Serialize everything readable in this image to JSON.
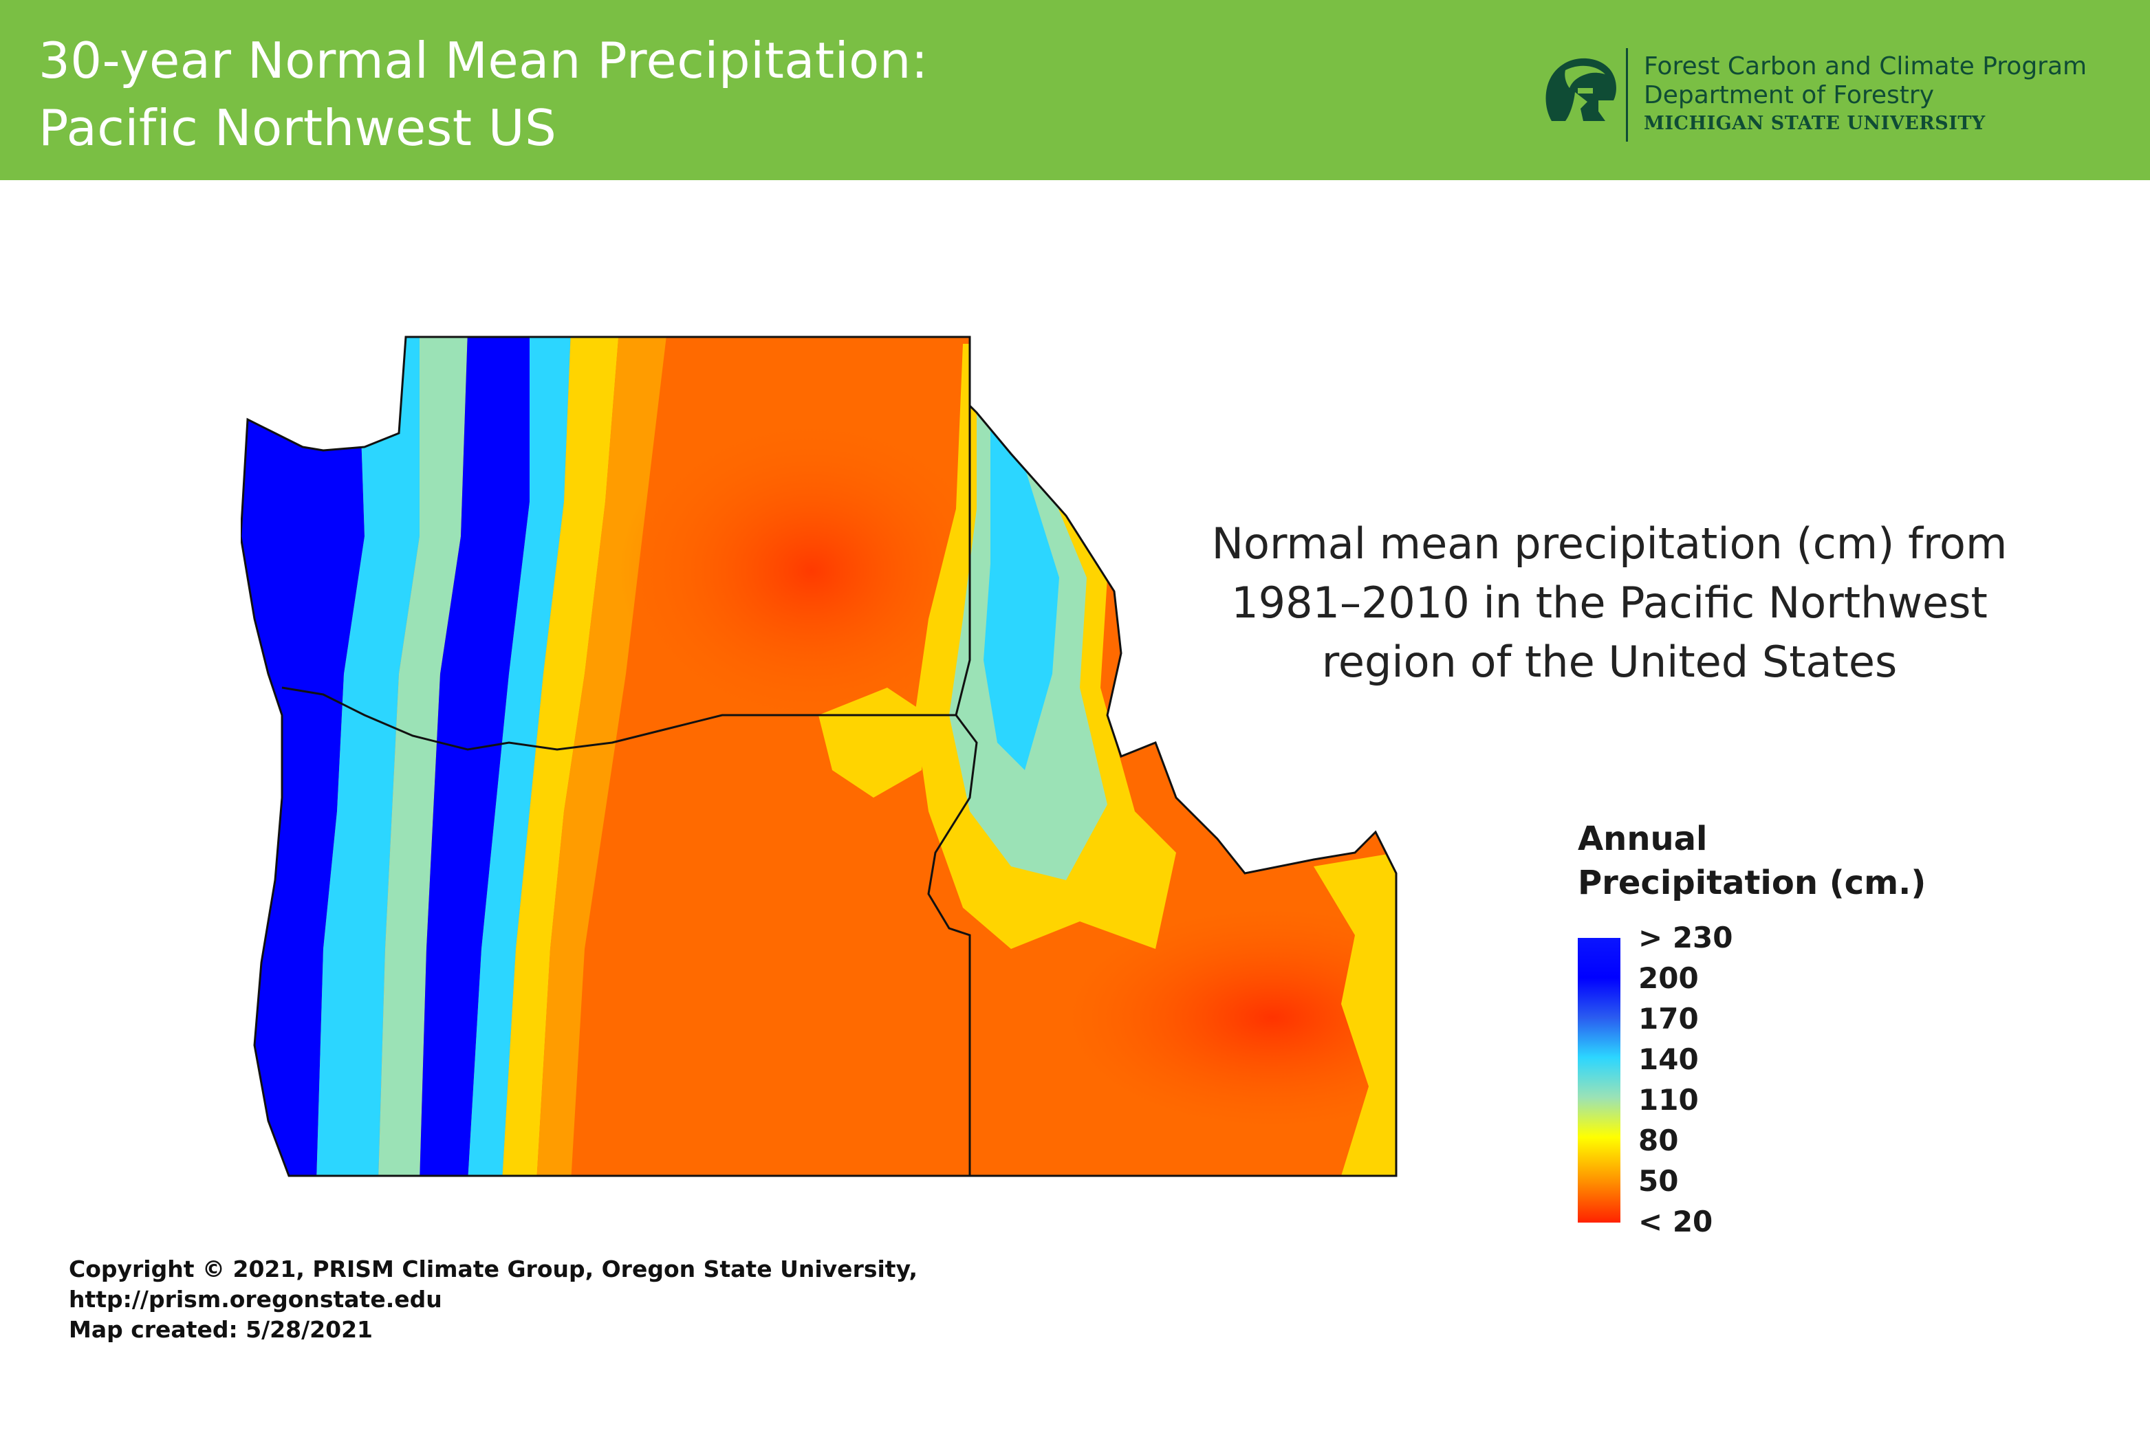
{
  "header": {
    "title_line1": "30-year Normal Mean Precipitation:",
    "title_line2": "Pacific Northwest US",
    "org_line1": "Forest Carbon and Climate Program",
    "org_line2": "Department of Forestry",
    "org_line3": "MICHIGAN STATE UNIVERSITY",
    "logo_icon": "spartan-helmet-icon",
    "colors": {
      "header_bg": "#7abf44",
      "title_text": "#ffffff",
      "org_text": "#0f4c35"
    }
  },
  "description": {
    "line1": "Normal mean precipitation (cm) from",
    "line2": "1981–2010 in the Pacific Northwest",
    "line3": "region of the United States"
  },
  "legend": {
    "title_line1": "Annual",
    "title_line2": "Precipitation (cm.)",
    "labels": [
      "> 230",
      "200",
      "170",
      "140",
      "110",
      "80",
      "50",
      "< 20"
    ],
    "colors": [
      "#0000ff",
      "#0000ff",
      "#2a5cf0",
      "#2cd6ff",
      "#9be2b6",
      "#ffff00",
      "#ff9c00",
      "#ff2200"
    ]
  },
  "map": {
    "region": "Pacific Northwest US",
    "states_shown": 3,
    "color_scale": "blue (wet) to red (dry)"
  },
  "credits": {
    "line1": "Copyright © 2021, PRISM Climate Group, Oregon State University,",
    "line2": "http://prism.oregonstate.edu",
    "line3": "Map created: 5/28/2021"
  }
}
